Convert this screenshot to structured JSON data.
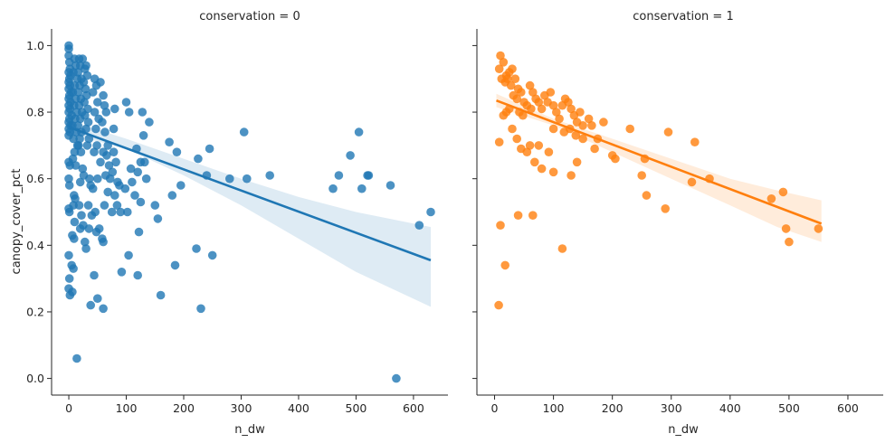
{
  "chart_data": {
    "type": "scatter",
    "facet_var": "conservation",
    "xlabel": "n_dw",
    "ylabel": "canopy_cover_pct",
    "xlim": [
      -30,
      660
    ],
    "ylim": [
      -0.05,
      1.05
    ],
    "xticks": [
      0,
      100,
      200,
      300,
      400,
      500,
      600
    ],
    "yticks": [
      0.0,
      0.2,
      0.4,
      0.6,
      0.8,
      1.0
    ],
    "xtick_labels": [
      "0",
      "100",
      "200",
      "300",
      "400",
      "500",
      "600"
    ],
    "ytick_labels": [
      "0.0",
      "0.2",
      "0.4",
      "0.6",
      "0.8",
      "1.0"
    ],
    "grid": false,
    "panels": [
      {
        "title": "conservation = 0",
        "color": "#1f77b4",
        "regression": {
          "x": [
            0,
            630
          ],
          "y": [
            0.755,
            0.355
          ]
        },
        "ci_upper": [
          [
            0,
            0.775
          ],
          [
            100,
            0.72
          ],
          [
            200,
            0.66
          ],
          [
            300,
            0.6
          ],
          [
            400,
            0.545
          ],
          [
            500,
            0.5
          ],
          [
            630,
            0.455
          ]
        ],
        "ci_lower": [
          [
            0,
            0.735
          ],
          [
            100,
            0.69
          ],
          [
            200,
            0.61
          ],
          [
            300,
            0.52
          ],
          [
            400,
            0.42
          ],
          [
            500,
            0.32
          ],
          [
            630,
            0.215
          ]
        ],
        "points": [
          [
            0,
            1.0
          ],
          [
            0,
            0.99
          ],
          [
            0,
            0.97
          ],
          [
            1,
            0.95
          ],
          [
            2,
            0.93
          ],
          [
            0,
            0.92
          ],
          [
            3,
            0.91
          ],
          [
            1,
            0.9
          ],
          [
            0,
            0.89
          ],
          [
            2,
            0.88
          ],
          [
            0,
            0.87
          ],
          [
            4,
            0.86
          ],
          [
            1,
            0.85
          ],
          [
            0,
            0.84
          ],
          [
            3,
            0.83
          ],
          [
            0,
            0.82
          ],
          [
            2,
            0.81
          ],
          [
            0,
            0.8
          ],
          [
            5,
            0.79
          ],
          [
            1,
            0.78
          ],
          [
            0,
            0.77
          ],
          [
            3,
            0.76
          ],
          [
            0,
            0.75
          ],
          [
            2,
            0.74
          ],
          [
            0,
            0.73
          ],
          [
            0,
            0.65
          ],
          [
            2,
            0.64
          ],
          [
            0,
            0.6
          ],
          [
            1,
            0.58
          ],
          [
            0,
            0.51
          ],
          [
            1,
            0.5
          ],
          [
            0,
            0.37
          ],
          [
            1,
            0.3
          ],
          [
            0,
            0.27
          ],
          [
            2,
            0.25
          ],
          [
            5,
            0.34
          ],
          [
            8,
            0.33
          ],
          [
            6,
            0.26
          ],
          [
            10,
            0.96
          ],
          [
            12,
            0.94
          ],
          [
            8,
            0.92
          ],
          [
            15,
            0.9
          ],
          [
            10,
            0.88
          ],
          [
            7,
            0.86
          ],
          [
            12,
            0.84
          ],
          [
            9,
            0.82
          ],
          [
            14,
            0.8
          ],
          [
            11,
            0.78
          ],
          [
            6,
            0.76
          ],
          [
            13,
            0.74
          ],
          [
            8,
            0.72
          ],
          [
            15,
            0.7
          ],
          [
            10,
            0.68
          ],
          [
            7,
            0.66
          ],
          [
            12,
            0.64
          ],
          [
            9,
            0.55
          ],
          [
            11,
            0.54
          ],
          [
            8,
            0.52
          ],
          [
            6,
            0.43
          ],
          [
            9,
            0.42
          ],
          [
            10,
            0.47
          ],
          [
            14,
            0.06
          ],
          [
            18,
            0.96
          ],
          [
            20,
            0.94
          ],
          [
            16,
            0.92
          ],
          [
            22,
            0.9
          ],
          [
            19,
            0.88
          ],
          [
            17,
            0.86
          ],
          [
            21,
            0.84
          ],
          [
            18,
            0.82
          ],
          [
            23,
            0.8
          ],
          [
            20,
            0.78
          ],
          [
            16,
            0.76
          ],
          [
            22,
            0.74
          ],
          [
            19,
            0.72
          ],
          [
            17,
            0.7
          ],
          [
            21,
            0.68
          ],
          [
            24,
            0.63
          ],
          [
            26,
            0.61
          ],
          [
            20,
            0.59
          ],
          [
            18,
            0.52
          ],
          [
            22,
            0.49
          ],
          [
            25,
            0.46
          ],
          [
            20,
            0.45
          ],
          [
            28,
            0.41
          ],
          [
            30,
            0.39
          ],
          [
            24,
            0.96
          ],
          [
            28,
            0.93
          ],
          [
            30,
            0.94
          ],
          [
            32,
            0.91
          ],
          [
            26,
            0.89
          ],
          [
            29,
            0.87
          ],
          [
            31,
            0.85
          ],
          [
            27,
            0.83
          ],
          [
            33,
            0.81
          ],
          [
            28,
            0.79
          ],
          [
            34,
            0.77
          ],
          [
            30,
            0.75
          ],
          [
            35,
            0.72
          ],
          [
            32,
            0.7
          ],
          [
            36,
            0.6
          ],
          [
            38,
            0.58
          ],
          [
            34,
            0.52
          ],
          [
            40,
            0.49
          ],
          [
            35,
            0.45
          ],
          [
            38,
            0.22
          ],
          [
            45,
            0.9
          ],
          [
            48,
            0.88
          ],
          [
            42,
            0.86
          ],
          [
            50,
            0.83
          ],
          [
            45,
            0.8
          ],
          [
            52,
            0.78
          ],
          [
            47,
            0.75
          ],
          [
            49,
            0.7
          ],
          [
            44,
            0.68
          ],
          [
            55,
            0.65
          ],
          [
            50,
            0.6
          ],
          [
            42,
            0.57
          ],
          [
            46,
            0.5
          ],
          [
            48,
            0.44
          ],
          [
            53,
            0.45
          ],
          [
            58,
            0.42
          ],
          [
            44,
            0.31
          ],
          [
            50,
            0.24
          ],
          [
            60,
            0.21
          ],
          [
            55,
            0.89
          ],
          [
            60,
            0.85
          ],
          [
            62,
            0.82
          ],
          [
            65,
            0.8
          ],
          [
            58,
            0.77
          ],
          [
            63,
            0.74
          ],
          [
            68,
            0.7
          ],
          [
            60,
            0.68
          ],
          [
            66,
            0.67
          ],
          [
            70,
            0.64
          ],
          [
            64,
            0.61
          ],
          [
            72,
            0.6
          ],
          [
            68,
            0.56
          ],
          [
            62,
            0.52
          ],
          [
            75,
            0.5
          ],
          [
            60,
            0.41
          ],
          [
            80,
            0.81
          ],
          [
            78,
            0.68
          ],
          [
            82,
            0.65
          ],
          [
            76,
            0.62
          ],
          [
            85,
            0.59
          ],
          [
            88,
            0.58
          ],
          [
            80,
            0.55
          ],
          [
            84,
            0.52
          ],
          [
            90,
            0.5
          ],
          [
            78,
            0.75
          ],
          [
            92,
            0.32
          ],
          [
            100,
            0.83
          ],
          [
            105,
            0.8
          ],
          [
            98,
            0.57
          ],
          [
            102,
            0.5
          ],
          [
            108,
            0.63
          ],
          [
            110,
            0.59
          ],
          [
            115,
            0.55
          ],
          [
            118,
            0.69
          ],
          [
            120,
            0.62
          ],
          [
            122,
            0.44
          ],
          [
            125,
            0.65
          ],
          [
            128,
            0.8
          ],
          [
            130,
            0.73
          ],
          [
            132,
            0.65
          ],
          [
            125,
            0.53
          ],
          [
            120,
            0.31
          ],
          [
            104,
            0.37
          ],
          [
            135,
            0.6
          ],
          [
            140,
            0.77
          ],
          [
            150,
            0.52
          ],
          [
            155,
            0.48
          ],
          [
            160,
            0.25
          ],
          [
            175,
            0.71
          ],
          [
            180,
            0.55
          ],
          [
            188,
            0.68
          ],
          [
            185,
            0.34
          ],
          [
            195,
            0.58
          ],
          [
            225,
            0.66
          ],
          [
            222,
            0.39
          ],
          [
            230,
            0.21
          ],
          [
            240,
            0.61
          ],
          [
            245,
            0.69
          ],
          [
            250,
            0.37
          ],
          [
            280,
            0.6
          ],
          [
            305,
            0.74
          ],
          [
            310,
            0.6
          ],
          [
            350,
            0.61
          ],
          [
            460,
            0.57
          ],
          [
            470,
            0.61
          ],
          [
            490,
            0.67
          ],
          [
            505,
            0.74
          ],
          [
            510,
            0.57
          ],
          [
            520,
            0.61
          ],
          [
            522,
            0.61
          ],
          [
            560,
            0.58
          ],
          [
            570,
            0.0
          ],
          [
            610,
            0.46
          ],
          [
            630,
            0.5
          ]
        ]
      },
      {
        "title": "conservation = 1",
        "color": "#ff7f0e",
        "regression": {
          "x": [
            3,
            555
          ],
          "y": [
            0.835,
            0.465
          ]
        },
        "ci_upper": [
          [
            3,
            0.855
          ],
          [
            100,
            0.78
          ],
          [
            200,
            0.72
          ],
          [
            300,
            0.66
          ],
          [
            400,
            0.6
          ],
          [
            480,
            0.565
          ],
          [
            555,
            0.535
          ]
        ],
        "ci_lower": [
          [
            3,
            0.815
          ],
          [
            100,
            0.76
          ],
          [
            200,
            0.68
          ],
          [
            300,
            0.6
          ],
          [
            400,
            0.52
          ],
          [
            480,
            0.455
          ],
          [
            555,
            0.41
          ]
        ],
        "points": [
          [
            10,
            0.97
          ],
          [
            15,
            0.95
          ],
          [
            8,
            0.93
          ],
          [
            20,
            0.91
          ],
          [
            12,
            0.9
          ],
          [
            25,
            0.92
          ],
          [
            30,
            0.93
          ],
          [
            22,
            0.9
          ],
          [
            18,
            0.89
          ],
          [
            28,
            0.88
          ],
          [
            35,
            0.9
          ],
          [
            40,
            0.87
          ],
          [
            32,
            0.85
          ],
          [
            45,
            0.86
          ],
          [
            38,
            0.84
          ],
          [
            50,
            0.83
          ],
          [
            55,
            0.82
          ],
          [
            60,
            0.88
          ],
          [
            42,
            0.8
          ],
          [
            48,
            0.79
          ],
          [
            62,
            0.81
          ],
          [
            65,
            0.86
          ],
          [
            70,
            0.84
          ],
          [
            75,
            0.83
          ],
          [
            80,
            0.81
          ],
          [
            85,
            0.85
          ],
          [
            90,
            0.83
          ],
          [
            95,
            0.86
          ],
          [
            100,
            0.82
          ],
          [
            105,
            0.8
          ],
          [
            110,
            0.78
          ],
          [
            115,
            0.82
          ],
          [
            120,
            0.84
          ],
          [
            125,
            0.83
          ],
          [
            130,
            0.81
          ],
          [
            135,
            0.79
          ],
          [
            140,
            0.77
          ],
          [
            145,
            0.8
          ],
          [
            150,
            0.76
          ],
          [
            100,
            0.75
          ],
          [
            25,
            0.81
          ],
          [
            20,
            0.8
          ],
          [
            15,
            0.79
          ],
          [
            8,
            0.71
          ],
          [
            10,
            0.46
          ],
          [
            18,
            0.34
          ],
          [
            7,
            0.22
          ],
          [
            30,
            0.75
          ],
          [
            38,
            0.72
          ],
          [
            45,
            0.69
          ],
          [
            55,
            0.68
          ],
          [
            60,
            0.7
          ],
          [
            68,
            0.65
          ],
          [
            75,
            0.7
          ],
          [
            80,
            0.63
          ],
          [
            92,
            0.68
          ],
          [
            100,
            0.62
          ],
          [
            115,
            0.39
          ],
          [
            118,
            0.74
          ],
          [
            130,
            0.61
          ],
          [
            140,
            0.65
          ],
          [
            128,
            0.75
          ],
          [
            138,
            0.73
          ],
          [
            150,
            0.72
          ],
          [
            160,
            0.78
          ],
          [
            165,
            0.76
          ],
          [
            175,
            0.72
          ],
          [
            185,
            0.77
          ],
          [
            170,
            0.69
          ],
          [
            200,
            0.67
          ],
          [
            205,
            0.66
          ],
          [
            230,
            0.75
          ],
          [
            250,
            0.61
          ],
          [
            255,
            0.66
          ],
          [
            258,
            0.55
          ],
          [
            290,
            0.51
          ],
          [
            295,
            0.74
          ],
          [
            335,
            0.59
          ],
          [
            340,
            0.71
          ],
          [
            365,
            0.6
          ],
          [
            470,
            0.54
          ],
          [
            490,
            0.56
          ],
          [
            495,
            0.45
          ],
          [
            500,
            0.41
          ],
          [
            550,
            0.45
          ],
          [
            40,
            0.49
          ],
          [
            65,
            0.49
          ]
        ]
      }
    ]
  }
}
